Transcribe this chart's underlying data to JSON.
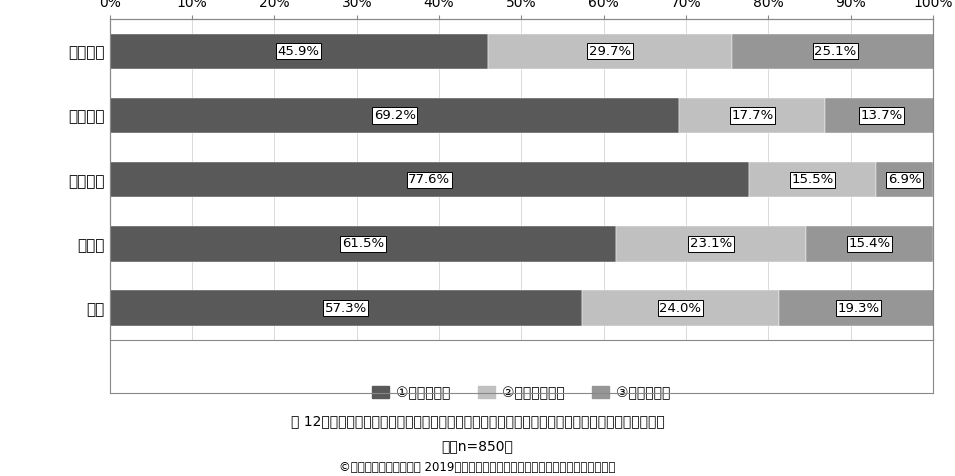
{
  "categories": [
    "修士課程",
    "博士課程",
    "それ以上",
    "その他",
    "全体"
  ],
  "series": [
    {
      "label": "①感じている",
      "color": "#595959",
      "values": [
        45.9,
        69.2,
        77.6,
        61.5,
        57.3
      ]
    },
    {
      "label": "②感じていない",
      "color": "#c0c0c0",
      "values": [
        29.7,
        17.7,
        15.5,
        23.1,
        24.0
      ]
    },
    {
      "label": "③わからない",
      "color": "#969696",
      "values": [
        25.1,
        13.7,
        6.9,
        15.4,
        19.3
      ]
    }
  ],
  "xlim": [
    0,
    100
  ],
  "xticks": [
    0,
    10,
    20,
    30,
    40,
    50,
    60,
    70,
    80,
    90,
    100
  ],
  "xtick_labels": [
    "0%",
    "10%",
    "20%",
    "30%",
    "40%",
    "50%",
    "60%",
    "70%",
    "80%",
    "90%",
    "100%"
  ],
  "caption_line1": "図 12．成果主義・業績主義的などからくる、自身の将来に対する精神的負担・不安を感じている",
  "caption_line2": "か（n=850）",
  "caption_line3": "©全国大学院生協議会　 2019年度大学院生の研究･経済実態アンケート調査結果",
  "bar_height": 0.55,
  "bg_color": "#ffffff",
  "label_fontsize": 11,
  "tick_fontsize": 10,
  "legend_fontsize": 10,
  "annotation_fontsize": 9.5
}
